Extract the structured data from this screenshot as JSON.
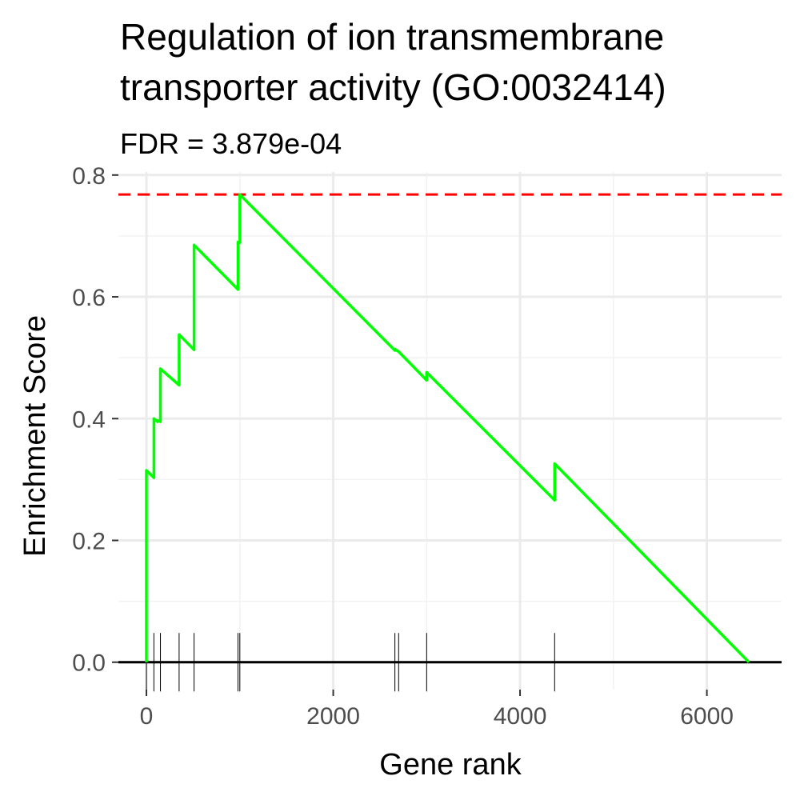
{
  "chart_data": {
    "type": "line",
    "title_lines": [
      "Regulation of ion transmembrane",
      "transporter activity (GO:0032414)"
    ],
    "subtitle": "FDR = 3.879e-04",
    "xlabel": "Gene rank",
    "ylabel": "Enrichment Score",
    "xlim": [
      -300,
      6800
    ],
    "ylim": [
      -0.045,
      0.805
    ],
    "x_ticks": [
      0,
      2000,
      4000,
      6000
    ],
    "x_tick_labels": [
      "0",
      "2000",
      "4000",
      "6000"
    ],
    "y_ticks": [
      0.0,
      0.2,
      0.4,
      0.6,
      0.8
    ],
    "y_tick_labels": [
      "0.0",
      "0.2",
      "0.4",
      "0.6",
      "0.8"
    ],
    "grid": true,
    "max_es": 0.768,
    "series": [
      {
        "color": "#00ff00",
        "x": [
          0,
          0,
          80,
          80,
          120,
          120,
          150,
          150,
          350,
          350,
          510,
          510,
          980,
          980,
          1000,
          1000,
          2660,
          2660,
          2700,
          2700,
          3000,
          3000,
          4370,
          4370,
          6450
        ],
        "y": [
          0.0,
          0.315,
          0.303,
          0.4,
          0.395,
          0.397,
          0.395,
          0.482,
          0.455,
          0.538,
          0.513,
          0.685,
          0.612,
          0.69,
          0.689,
          0.768,
          0.512,
          0.514,
          0.51,
          0.51,
          0.463,
          0.476,
          0.266,
          0.326,
          0.0
        ]
      }
    ],
    "hit_ranks": [
      0,
      80,
      150,
      350,
      510,
      980,
      1000,
      2660,
      2700,
      3000,
      4370
    ]
  }
}
